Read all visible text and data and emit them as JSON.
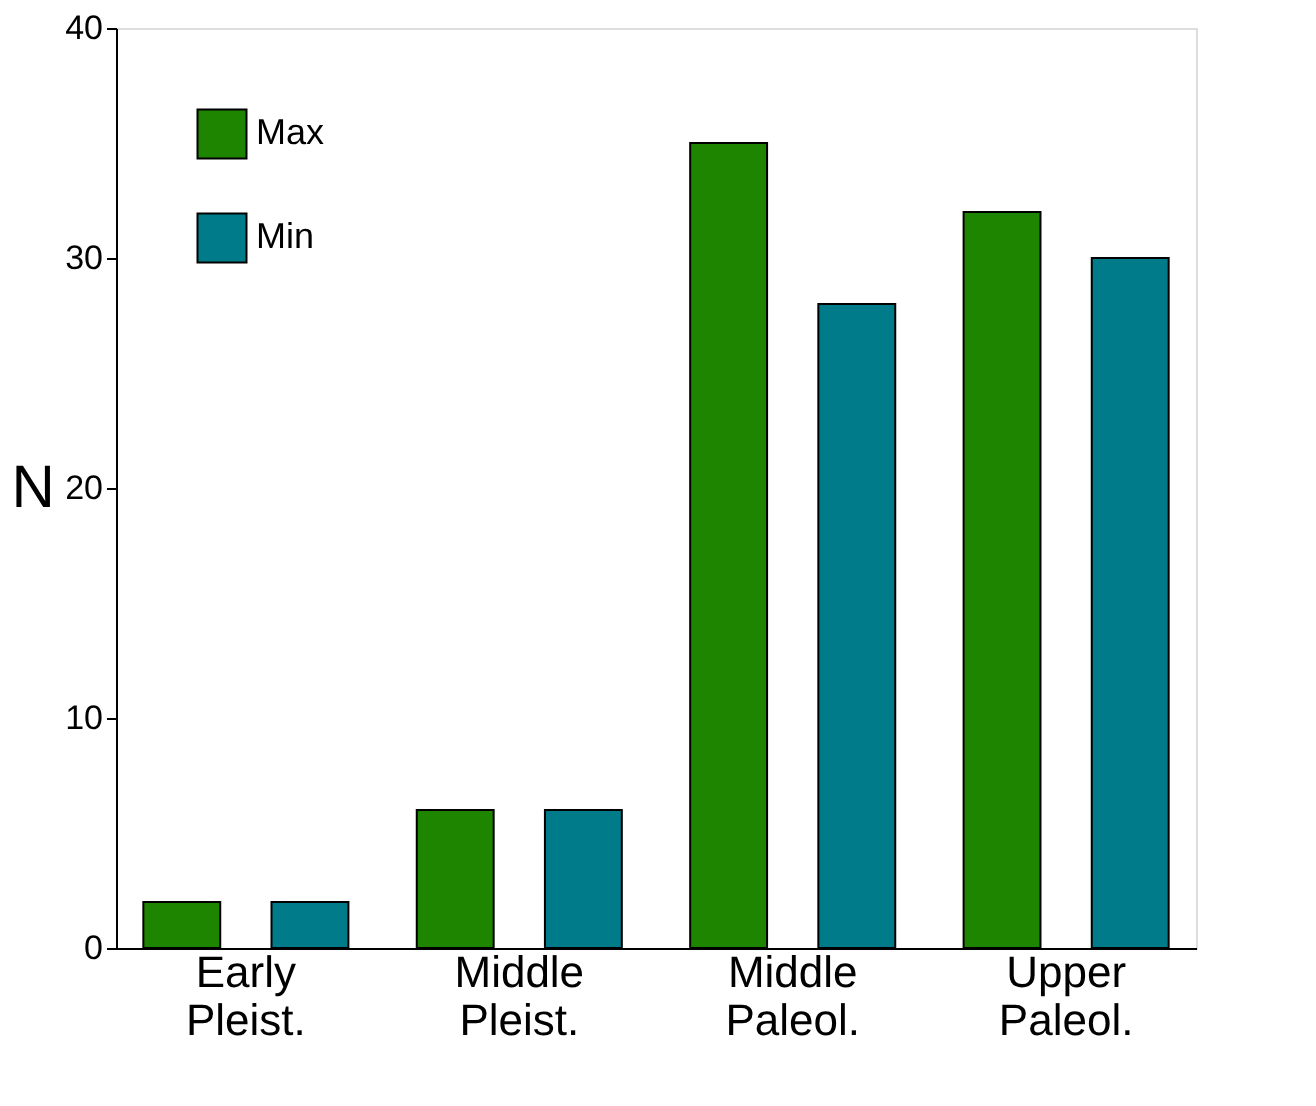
{
  "chart_data": {
    "type": "bar",
    "ylabel": "N",
    "categories": [
      "Early Pleist.",
      "Middle Pleist.",
      "Middle Paleol.",
      "Upper Paleol."
    ],
    "series": [
      {
        "name": "Max",
        "color": "#1e8500",
        "values": [
          2,
          6,
          35,
          32
        ]
      },
      {
        "name": "Min",
        "color": "#007b8a",
        "values": [
          2,
          6,
          28,
          30
        ]
      }
    ],
    "ylim": [
      0,
      40
    ],
    "yticks": [
      0,
      10,
      20,
      30,
      40
    ],
    "grid": false,
    "legend": "top left"
  }
}
